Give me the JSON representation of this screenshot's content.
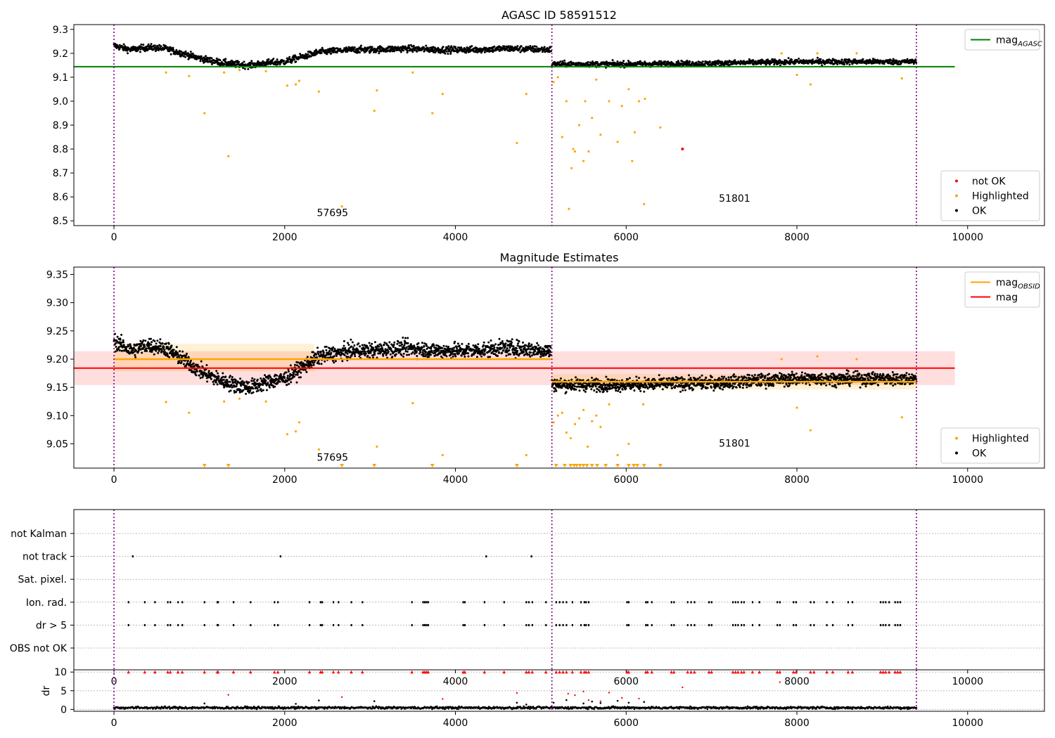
{
  "chart_data": [
    {
      "type": "scatter",
      "title": "AGASC ID 58591512",
      "xlim": [
        -470,
        10900
      ],
      "ylim": [
        8.48,
        9.32
      ],
      "xticks": [
        0,
        2000,
        4000,
        6000,
        8000,
        10000
      ],
      "yticks": [
        8.5,
        8.6,
        8.7,
        8.8,
        8.9,
        9.0,
        9.1,
        9.2,
        9.3
      ],
      "ytick_labels": [
        "8.5",
        "8.6",
        "8.7",
        "8.8",
        "8.9",
        "9.0",
        "9.1",
        "9.2",
        "9.3"
      ],
      "obs_boundaries": [
        0,
        5130,
        9400
      ],
      "obs_labels": [
        {
          "text": "57695",
          "x": 2560,
          "y": 8.52
        },
        {
          "text": "51801",
          "x": 7270,
          "y": 8.58
        }
      ],
      "reference_lines": [
        {
          "name": "mag_AGASC",
          "y": 9.144,
          "x0": -470,
          "x1": 9850,
          "color": "#008000"
        }
      ],
      "ok_bands": [
        {
          "x0": 0,
          "x1": 5120,
          "center": 9.2,
          "spread": 0.03,
          "trend": [
            [
              0,
              9.232
            ],
            [
              200,
              9.215
            ],
            [
              400,
              9.225
            ],
            [
              600,
              9.22
            ],
            [
              800,
              9.2
            ],
            [
              1000,
              9.18
            ],
            [
              1200,
              9.165
            ],
            [
              1400,
              9.155
            ],
            [
              1600,
              9.15
            ],
            [
              1800,
              9.16
            ],
            [
              2000,
              9.165
            ],
            [
              2200,
              9.185
            ],
            [
              2400,
              9.205
            ],
            [
              2600,
              9.21
            ],
            [
              2800,
              9.215
            ],
            [
              3000,
              9.215
            ],
            [
              3400,
              9.22
            ],
            [
              3800,
              9.215
            ],
            [
              4200,
              9.215
            ],
            [
              4600,
              9.22
            ],
            [
              5120,
              9.215
            ]
          ]
        },
        {
          "x0": 5130,
          "x1": 9400,
          "center": 9.16,
          "spread": 0.025,
          "trend": [
            [
              5130,
              9.155
            ],
            [
              6000,
              9.155
            ],
            [
              7000,
              9.158
            ],
            [
              8000,
              9.165
            ],
            [
              9400,
              9.165
            ]
          ]
        }
      ],
      "highlighted": [
        [
          610,
          9.12
        ],
        [
          880,
          9.105
        ],
        [
          1060,
          8.95
        ],
        [
          1340,
          8.77
        ],
        [
          1290,
          9.12
        ],
        [
          1470,
          9.13
        ],
        [
          1780,
          9.125
        ],
        [
          2030,
          9.065
        ],
        [
          2130,
          9.07
        ],
        [
          2170,
          9.085
        ],
        [
          2400,
          9.04
        ],
        [
          2670,
          8.56
        ],
        [
          3050,
          8.96
        ],
        [
          3080,
          9.045
        ],
        [
          3500,
          9.12
        ],
        [
          3730,
          8.95
        ],
        [
          3850,
          9.03
        ],
        [
          4720,
          8.825
        ],
        [
          4830,
          9.03
        ],
        [
          5150,
          9.08
        ],
        [
          5200,
          9.1
        ],
        [
          5250,
          8.85
        ],
        [
          5300,
          9.0
        ],
        [
          5330,
          8.55
        ],
        [
          5360,
          8.72
        ],
        [
          5380,
          8.8
        ],
        [
          5400,
          8.79
        ],
        [
          5450,
          8.9
        ],
        [
          5500,
          8.75
        ],
        [
          5520,
          9.0
        ],
        [
          5560,
          8.79
        ],
        [
          5600,
          8.93
        ],
        [
          5650,
          9.09
        ],
        [
          5700,
          8.86
        ],
        [
          5800,
          9.0
        ],
        [
          5900,
          8.83
        ],
        [
          5950,
          8.98
        ],
        [
          6030,
          9.05
        ],
        [
          6070,
          8.75
        ],
        [
          6100,
          8.87
        ],
        [
          6150,
          9.0
        ],
        [
          6220,
          9.01
        ],
        [
          6400,
          8.89
        ],
        [
          6210,
          8.57
        ],
        [
          7820,
          9.2
        ],
        [
          8000,
          9.11
        ],
        [
          8160,
          9.07
        ],
        [
          8240,
          9.2
        ],
        [
          8700,
          9.2
        ],
        [
          9230,
          9.095
        ]
      ],
      "not_ok": [
        [
          6660,
          8.8
        ]
      ],
      "legends": [
        {
          "position": "upper-right",
          "entries": [
            {
              "label": "mag",
              "subscript": "AGASC",
              "kind": "line",
              "color": "#008000"
            }
          ]
        },
        {
          "position": "lower-right",
          "entries": [
            {
              "label": "not OK",
              "kind": "dot",
              "color": "#ff0000"
            },
            {
              "label": "Highlighted",
              "kind": "dot",
              "color": "#ffa500"
            },
            {
              "label": "OK",
              "kind": "dot",
              "color": "#000000"
            }
          ]
        }
      ]
    },
    {
      "type": "scatter",
      "title": "Magnitude Estimates",
      "xlim": [
        -470,
        10900
      ],
      "ylim": [
        9.007,
        9.363
      ],
      "xticks": [
        0,
        2000,
        4000,
        6000,
        8000,
        10000
      ],
      "yticks": [
        9.05,
        9.1,
        9.15,
        9.2,
        9.25,
        9.3,
        9.35
      ],
      "ytick_labels": [
        "9.05",
        "9.10",
        "9.15",
        "9.20",
        "9.25",
        "9.30",
        "9.35"
      ],
      "obs_boundaries": [
        0,
        5130,
        9400
      ],
      "obs_labels": [
        {
          "text": "57695",
          "x": 2560,
          "y": 9.02
        },
        {
          "text": "51801",
          "x": 7270,
          "y": 9.045
        }
      ],
      "mag_band": {
        "y": 9.184,
        "lo": 9.154,
        "hi": 9.214,
        "x0": -470,
        "x1": 9850,
        "color": "#ff0000"
      },
      "obsid_segments": [
        {
          "x0": 0,
          "x1": 5120,
          "y": 9.2,
          "lo": 9.178,
          "hi": 9.227,
          "band_x1": 2350
        },
        {
          "x0": 5130,
          "x1": 9400,
          "y": 9.16,
          "lo": 9.146,
          "hi": 9.174,
          "band_x1": 9400
        }
      ],
      "ok_bands": [
        {
          "x0": 0,
          "x1": 5120,
          "center": 9.2,
          "spread": 0.03,
          "trend": [
            [
              0,
              9.232
            ],
            [
              200,
              9.215
            ],
            [
              400,
              9.225
            ],
            [
              600,
              9.22
            ],
            [
              800,
              9.2
            ],
            [
              1000,
              9.18
            ],
            [
              1200,
              9.165
            ],
            [
              1400,
              9.155
            ],
            [
              1600,
              9.15
            ],
            [
              1800,
              9.16
            ],
            [
              2000,
              9.165
            ],
            [
              2200,
              9.185
            ],
            [
              2400,
              9.205
            ],
            [
              2600,
              9.21
            ],
            [
              2800,
              9.215
            ],
            [
              3000,
              9.215
            ],
            [
              3400,
              9.22
            ],
            [
              3800,
              9.215
            ],
            [
              4200,
              9.215
            ],
            [
              4600,
              9.22
            ],
            [
              5120,
              9.215
            ]
          ]
        },
        {
          "x0": 5130,
          "x1": 9400,
          "center": 9.16,
          "spread": 0.025,
          "trend": [
            [
              5130,
              9.155
            ],
            [
              6000,
              9.155
            ],
            [
              7000,
              9.158
            ],
            [
              8000,
              9.165
            ],
            [
              9400,
              9.165
            ]
          ]
        }
      ],
      "highlighted": [
        [
          610,
          9.124
        ],
        [
          880,
          9.105
        ],
        [
          1290,
          9.125
        ],
        [
          1470,
          9.13
        ],
        [
          1780,
          9.125
        ],
        [
          2030,
          9.067
        ],
        [
          2130,
          9.072
        ],
        [
          2170,
          9.088
        ],
        [
          2400,
          9.04
        ],
        [
          3080,
          9.045
        ],
        [
          3500,
          9.122
        ],
        [
          3850,
          9.03
        ],
        [
          4830,
          9.03
        ],
        [
          5150,
          9.088
        ],
        [
          5200,
          9.1
        ],
        [
          5250,
          9.105
        ],
        [
          5300,
          9.07
        ],
        [
          5350,
          9.06
        ],
        [
          5400,
          9.085
        ],
        [
          5450,
          9.095
        ],
        [
          5500,
          9.11
        ],
        [
          5550,
          9.045
        ],
        [
          5600,
          9.09
        ],
        [
          5650,
          9.1
        ],
        [
          5700,
          9.08
        ],
        [
          5800,
          9.12
        ],
        [
          5900,
          9.03
        ],
        [
          6030,
          9.05
        ],
        [
          6200,
          9.12
        ],
        [
          7820,
          9.2
        ],
        [
          8000,
          9.114
        ],
        [
          8160,
          9.074
        ],
        [
          8240,
          9.205
        ],
        [
          8700,
          9.2
        ],
        [
          9230,
          9.097
        ]
      ],
      "clipped_low": [
        1060,
        1340,
        2670,
        3050,
        3730,
        4720,
        5180,
        5280,
        5350,
        5390,
        5420,
        5460,
        5500,
        5540,
        5600,
        5660,
        5760,
        5900,
        6030,
        6090,
        6130,
        6210,
        6400
      ],
      "legends": [
        {
          "position": "upper-right",
          "entries": [
            {
              "label": "mag",
              "subscript": "OBSID",
              "kind": "line",
              "color": "#ffa500"
            },
            {
              "label": "mag",
              "kind": "line",
              "color": "#ff0000"
            }
          ]
        },
        {
          "position": "lower-right",
          "entries": [
            {
              "label": "Highlighted",
              "kind": "dot",
              "color": "#ffa500"
            },
            {
              "label": "OK",
              "kind": "dot",
              "color": "#000000"
            }
          ]
        }
      ]
    },
    {
      "type": "scatter",
      "xlim": [
        -470,
        10900
      ],
      "xticks": [
        0,
        2000,
        4000,
        6000,
        8000,
        10000
      ],
      "obs_boundaries": [
        0,
        5130,
        9400
      ],
      "flag_rows": [
        "not Kalman",
        "not track",
        "Sat. pixel.",
        "Ion. rad.",
        "dr > 5",
        "OBS not OK"
      ],
      "flag_points": {
        "not track": [
          220,
          1950,
          4360,
          4890
        ],
        "Ion. rad.": [
          170,
          360,
          480,
          630,
          660,
          750,
          800,
          1060,
          1210,
          1220,
          1400,
          1600,
          1880,
          1920,
          2290,
          2420,
          2440,
          2570,
          2630,
          2780,
          2910,
          3490,
          3620,
          3640,
          3660,
          3680,
          4090,
          4110,
          4340,
          4570,
          4830,
          4860,
          4900,
          5060,
          5180,
          5220,
          5260,
          5300,
          5370,
          5470,
          5510,
          5530,
          5560,
          6010,
          6030,
          6230,
          6250,
          6300,
          6530,
          6560,
          6720,
          6760,
          6800,
          6970,
          7000,
          7250,
          7280,
          7310,
          7350,
          7380,
          7480,
          7560,
          7770,
          7800,
          7960,
          7990,
          8160,
          8200,
          8350,
          8420,
          8600,
          8650,
          8980,
          9010,
          9040,
          9080,
          9150,
          9180,
          9210
        ],
        "dr > 5": [
          170,
          360,
          480,
          630,
          660,
          750,
          800,
          1060,
          1210,
          1220,
          1400,
          1600,
          1880,
          1920,
          2290,
          2420,
          2440,
          2570,
          2630,
          2780,
          2910,
          3490,
          3620,
          3640,
          3660,
          3680,
          4090,
          4110,
          4340,
          4570,
          4830,
          4860,
          4900,
          5060,
          5180,
          5220,
          5260,
          5300,
          5370,
          5470,
          5510,
          5530,
          5560,
          6010,
          6030,
          6230,
          6250,
          6300,
          6530,
          6560,
          6720,
          6760,
          6800,
          6970,
          7000,
          7250,
          7280,
          7310,
          7350,
          7380,
          7480,
          7560,
          7770,
          7800,
          7960,
          7990,
          8160,
          8200,
          8350,
          8420,
          8600,
          8650,
          8980,
          9010,
          9040,
          9080,
          9150,
          9180,
          9210
        ]
      }
    },
    {
      "type": "scatter",
      "ylabel": "dr",
      "xlim": [
        -470,
        10900
      ],
      "ylim": [
        -0.5,
        10.6
      ],
      "xticks": [
        0,
        2000,
        4000,
        6000,
        8000,
        10000
      ],
      "yticks": [
        0,
        5,
        10
      ],
      "obs_boundaries": [
        0,
        5130,
        9400
      ],
      "dr_capped": [
        170,
        360,
        480,
        630,
        660,
        750,
        800,
        1060,
        1210,
        1220,
        1400,
        1600,
        1880,
        1920,
        2290,
        2420,
        2440,
        2570,
        2630,
        2780,
        2910,
        3490,
        3620,
        3640,
        3660,
        3680,
        4090,
        4110,
        4340,
        4570,
        4830,
        4860,
        4900,
        5060,
        5180,
        5220,
        5260,
        5300,
        5370,
        5470,
        5510,
        5530,
        5560,
        6010,
        6030,
        6230,
        6250,
        6300,
        6530,
        6560,
        6720,
        6760,
        6800,
        6970,
        7000,
        7250,
        7280,
        7310,
        7350,
        7380,
        7480,
        7560,
        7770,
        7800,
        7960,
        7990,
        8160,
        8200,
        8350,
        8420,
        8600,
        8650,
        8980,
        9010,
        9040,
        9080,
        9150,
        9180,
        9210
      ],
      "dr_red": [
        [
          1340,
          3.9
        ],
        [
          2670,
          3.3
        ],
        [
          3850,
          2.8
        ],
        [
          4720,
          4.4
        ],
        [
          5320,
          4.2
        ],
        [
          5400,
          3.8
        ],
        [
          5500,
          4.8
        ],
        [
          5560,
          2.5
        ],
        [
          5800,
          4.5
        ],
        [
          5950,
          3.1
        ],
        [
          6660,
          5.9
        ],
        [
          7800,
          7.3
        ],
        [
          5700,
          2.2
        ],
        [
          6150,
          2.9
        ]
      ],
      "dr_mid": [
        [
          1060,
          1.6
        ],
        [
          2130,
          1.5
        ],
        [
          2400,
          2.4
        ],
        [
          3050,
          2.2
        ],
        [
          4720,
          1.8
        ],
        [
          4830,
          1.3
        ],
        [
          5150,
          1.8
        ],
        [
          5300,
          2.5
        ],
        [
          5500,
          1.6
        ],
        [
          5600,
          2.1
        ],
        [
          5700,
          1.7
        ],
        [
          5900,
          2.3
        ],
        [
          6030,
          1.8
        ],
        [
          6210,
          2.0
        ]
      ]
    }
  ]
}
